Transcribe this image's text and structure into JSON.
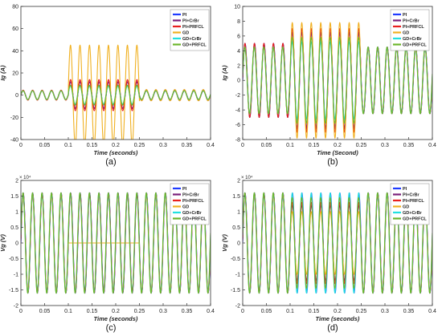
{
  "series_colors": {
    "PI": "#1f3bff",
    "PI+CrBr": "#7a1f7a",
    "PI+PRFCL": "#e8201e",
    "GD": "#f0b020",
    "GD+CrBr": "#22e0e0",
    "GD+PRFCL": "#6cb52a"
  },
  "chart_data": [
    {
      "id": "a",
      "type": "line",
      "panel_label": "(a)",
      "xlabel": "Time (seconds)",
      "ylabel": "Ig (A)",
      "y_exponent": "",
      "xlim": [
        0,
        0.4
      ],
      "ylim": [
        -40,
        80
      ],
      "xticks": [
        0,
        0.05,
        0.1,
        0.15,
        0.2,
        0.25,
        0.3,
        0.35,
        0.4
      ],
      "xtick_labels": [
        "0",
        "0.05",
        "0.1",
        "0.15",
        "0.2",
        "0.25",
        "0.3",
        "0.35",
        "0.4"
      ],
      "yticks": [
        -40,
        -20,
        0,
        20,
        40,
        60,
        80
      ],
      "ytick_labels": [
        "-40",
        "-20",
        "0",
        "20",
        "40",
        "60",
        "80"
      ],
      "grid": false,
      "legend": "top-right",
      "series": [
        {
          "name": "PI",
          "color": "#1f3bff",
          "frequency": 50,
          "segments": [
            [
              0,
              0.1,
              4
            ],
            [
              0.1,
              0.25,
              12
            ],
            [
              0.25,
              0.4,
              4
            ]
          ]
        },
        {
          "name": "PI+CrBr",
          "color": "#7a1f7a",
          "frequency": 50,
          "segments": [
            [
              0,
              0.1,
              4
            ],
            [
              0.1,
              0.25,
              12
            ],
            [
              0.25,
              0.4,
              4
            ]
          ]
        },
        {
          "name": "PI+PRFCL",
          "color": "#e8201e",
          "frequency": 50,
          "segments": [
            [
              0,
              0.1,
              4.5
            ],
            [
              0.1,
              0.25,
              14
            ],
            [
              0.25,
              0.4,
              5
            ]
          ]
        },
        {
          "name": "GD",
          "color": "#f0b020",
          "frequency": 50,
          "segments": [
            [
              0,
              0.1,
              4
            ],
            [
              0.1,
              0.25,
              45
            ],
            [
              0.25,
              0.4,
              5
            ]
          ]
        },
        {
          "name": "GD+CrBr",
          "color": "#22e0e0",
          "frequency": 50,
          "segments": [
            [
              0,
              0.1,
              4
            ],
            [
              0.1,
              0.25,
              8
            ],
            [
              0.25,
              0.4,
              4
            ]
          ]
        },
        {
          "name": "GD+PRFCL",
          "color": "#6cb52a",
          "frequency": 50,
          "segments": [
            [
              0,
              0.1,
              4
            ],
            [
              0.1,
              0.25,
              9
            ],
            [
              0.25,
              0.4,
              4
            ]
          ]
        }
      ]
    },
    {
      "id": "b",
      "type": "line",
      "panel_label": "(b)",
      "xlabel": "Time (Second)",
      "ylabel": "Ig (A)",
      "y_exponent": "",
      "xlim": [
        0,
        0.4
      ],
      "ylim": [
        -8,
        10
      ],
      "xticks": [
        0,
        0.05,
        0.1,
        0.15,
        0.2,
        0.25,
        0.3,
        0.35,
        0.4
      ],
      "xtick_labels": [
        "0",
        "0.05",
        "0.1",
        "0.15",
        "0.2",
        "0.25",
        "0.3",
        "0.35",
        "0.4"
      ],
      "yticks": [
        -8,
        -6,
        -4,
        -2,
        0,
        2,
        4,
        6,
        8,
        10
      ],
      "ytick_labels": [
        "-8",
        "-6",
        "-4",
        "-2",
        "0",
        "2",
        "4",
        "6",
        "8",
        "10"
      ],
      "grid": false,
      "legend": "top-right",
      "series": [
        {
          "name": "PI",
          "color": "#1f3bff",
          "frequency": 50,
          "segments": [
            [
              0,
              0.1,
              5
            ],
            [
              0.1,
              0.25,
              6.5
            ],
            [
              0.25,
              0.4,
              4.5
            ]
          ]
        },
        {
          "name": "PI+CrBr",
          "color": "#7a1f7a",
          "frequency": 50,
          "segments": [
            [
              0,
              0.1,
              5
            ],
            [
              0.1,
              0.25,
              6.5
            ],
            [
              0.25,
              0.4,
              4.5
            ]
          ]
        },
        {
          "name": "PI+PRFCL",
          "color": "#e8201e",
          "frequency": 50,
          "segments": [
            [
              0,
              0.1,
              5
            ],
            [
              0.1,
              0.25,
              7
            ],
            [
              0.25,
              0.4,
              4.5
            ]
          ]
        },
        {
          "name": "GD",
          "color": "#f0b020",
          "frequency": 50,
          "segments": [
            [
              0,
              0.1,
              4.5
            ],
            [
              0.1,
              0.25,
              7.8
            ],
            [
              0.25,
              0.4,
              4.5
            ]
          ]
        },
        {
          "name": "GD+CrBr",
          "color": "#22e0e0",
          "frequency": 50,
          "segments": [
            [
              0,
              0.1,
              4.5
            ],
            [
              0.1,
              0.25,
              5.2
            ],
            [
              0.25,
              0.4,
              4.5
            ]
          ]
        },
        {
          "name": "GD+PRFCL",
          "color": "#6cb52a",
          "frequency": 50,
          "segments": [
            [
              0,
              0.1,
              4.5
            ],
            [
              0.1,
              0.25,
              5.8
            ],
            [
              0.25,
              0.4,
              4.5
            ]
          ]
        }
      ]
    },
    {
      "id": "c",
      "type": "line",
      "panel_label": "(c)",
      "xlabel": "Time (seconds)",
      "ylabel": "Vg (V)",
      "y_exponent": "× 10⁴",
      "xlim": [
        0,
        0.4
      ],
      "ylim": [
        -2,
        2
      ],
      "xticks": [
        0,
        0.05,
        0.1,
        0.15,
        0.2,
        0.25,
        0.3,
        0.35,
        0.4
      ],
      "xtick_labels": [
        "0",
        "0.05",
        "0.1",
        "0.15",
        "0.2",
        "0.25",
        "0.3",
        "0.35",
        "0.4"
      ],
      "yticks": [
        -2,
        -1.5,
        -1,
        -0.5,
        0,
        0.5,
        1,
        1.5,
        2
      ],
      "ytick_labels": [
        "-2",
        "-1.5",
        "-1",
        "-0.5",
        "0",
        "0.5",
        "1",
        "1.5",
        "2"
      ],
      "grid": false,
      "legend": "top-right",
      "series": [
        {
          "name": "PI",
          "color": "#1f3bff",
          "frequency": 50,
          "segments": [
            [
              0,
              0.4,
              1.6
            ]
          ]
        },
        {
          "name": "PI+CrBr",
          "color": "#7a1f7a",
          "frequency": 50,
          "segments": [
            [
              0,
              0.4,
              1.6
            ]
          ]
        },
        {
          "name": "PI+PRFCL",
          "color": "#e8201e",
          "frequency": 50,
          "segments": [
            [
              0,
              0.4,
              1.6
            ]
          ]
        },
        {
          "name": "GD",
          "color": "#f0b020",
          "frequency": 50,
          "segments": [
            [
              0,
              0.1,
              1.6
            ],
            [
              0.1,
              0.25,
              0
            ],
            [
              0.25,
              0.4,
              1.6
            ]
          ]
        },
        {
          "name": "GD+CrBr",
          "color": "#22e0e0",
          "frequency": 50,
          "segments": [
            [
              0,
              0.4,
              1.6
            ]
          ]
        },
        {
          "name": "GD+PRFCL",
          "color": "#6cb52a",
          "frequency": 50,
          "segments": [
            [
              0,
              0.4,
              1.6
            ]
          ]
        }
      ]
    },
    {
      "id": "d",
      "type": "line",
      "panel_label": "(d)",
      "xlabel": "Time (seconds)",
      "ylabel": "Vg (V)",
      "y_exponent": "× 10⁴",
      "xlim": [
        0,
        0.4
      ],
      "ylim": [
        -2,
        2
      ],
      "xticks": [
        0,
        0.05,
        0.1,
        0.15,
        0.2,
        0.25,
        0.3,
        0.35,
        0.4
      ],
      "xtick_labels": [
        "0",
        "0.05",
        "0.1",
        "0.15",
        "0.2",
        "0.25",
        "0.3",
        "0.35",
        "0.4"
      ],
      "yticks": [
        -2,
        -1.5,
        -1,
        -0.5,
        0,
        0.5,
        1,
        1.5,
        2
      ],
      "ytick_labels": [
        "-2",
        "-1.5",
        "-1",
        "-0.5",
        "0",
        "0.5",
        "1",
        "1.5",
        "2"
      ],
      "grid": false,
      "legend": "top-right",
      "series": [
        {
          "name": "PI",
          "color": "#1f3bff",
          "frequency": 50,
          "segments": [
            [
              0,
              0.4,
              1.6
            ]
          ]
        },
        {
          "name": "PI+CrBr",
          "color": "#7a1f7a",
          "frequency": 50,
          "segments": [
            [
              0,
              0.1,
              1.6
            ],
            [
              0.1,
              0.25,
              1.2
            ],
            [
              0.25,
              0.4,
              1.6
            ]
          ]
        },
        {
          "name": "PI+PRFCL",
          "color": "#e8201e",
          "frequency": 50,
          "segments": [
            [
              0,
              0.1,
              1.6
            ],
            [
              0.1,
              0.25,
              1.3
            ],
            [
              0.25,
              0.4,
              1.6
            ]
          ]
        },
        {
          "name": "GD",
          "color": "#f0b020",
          "frequency": 50,
          "segments": [
            [
              0,
              0.1,
              1.6
            ],
            [
              0.1,
              0.25,
              1.0
            ],
            [
              0.25,
              0.4,
              1.6
            ]
          ]
        },
        {
          "name": "GD+CrBr",
          "color": "#22e0e0",
          "frequency": 50,
          "segments": [
            [
              0,
              0.4,
              1.6
            ]
          ]
        },
        {
          "name": "GD+PRFCL",
          "color": "#6cb52a",
          "frequency": 50,
          "segments": [
            [
              0,
              0.1,
              1.6
            ],
            [
              0.1,
              0.25,
              1.45
            ],
            [
              0.25,
              0.4,
              1.6
            ]
          ]
        }
      ]
    }
  ]
}
